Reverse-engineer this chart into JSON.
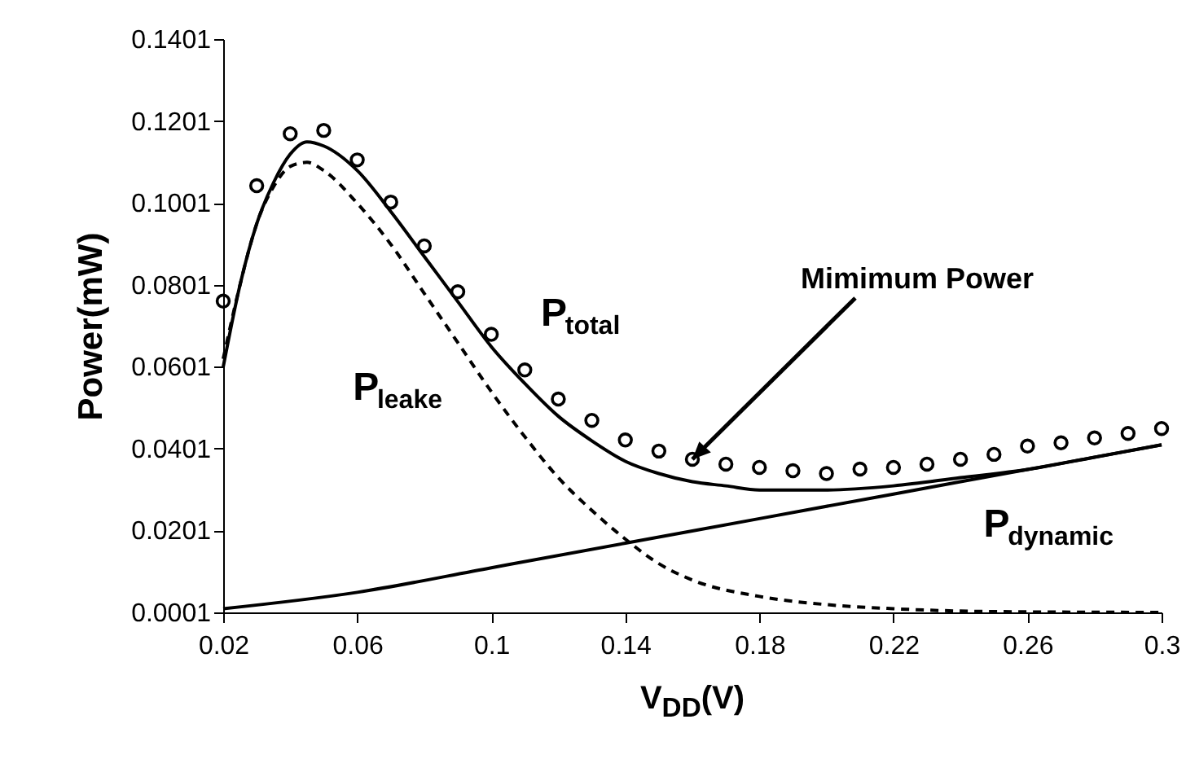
{
  "chart_data": {
    "type": "line",
    "xlabel": "V$_{DD}$(V)",
    "ylabel": "Power(mW)",
    "xlim": [
      0.02,
      0.3
    ],
    "xticks": [
      0.02,
      0.06,
      0.1,
      0.14,
      0.18,
      0.22,
      0.26,
      0.3
    ],
    "ylim": [
      0.0001,
      0.1401
    ],
    "yticks": [
      0.0001,
      0.0201,
      0.0401,
      0.0601,
      0.0801,
      0.1001,
      0.1201,
      0.1401
    ],
    "annotations": [
      {
        "text": "Mimimum Power",
        "x": 0.16,
        "y": 0.0375
      }
    ],
    "series": [
      {
        "name": "P$_{total}$",
        "color": "#000000",
        "line_style": "solid",
        "x": [
          0.02,
          0.025,
          0.03,
          0.035,
          0.04,
          0.045,
          0.05,
          0.06,
          0.07,
          0.08,
          0.09,
          0.1,
          0.11,
          0.12,
          0.13,
          0.14,
          0.15,
          0.16,
          0.17,
          0.18,
          0.2,
          0.22,
          0.24,
          0.26,
          0.28,
          0.3
        ],
        "values": [
          0.06,
          0.08,
          0.095,
          0.105,
          0.112,
          0.115,
          0.114,
          0.108,
          0.098,
          0.087,
          0.076,
          0.065,
          0.056,
          0.048,
          0.042,
          0.037,
          0.034,
          0.032,
          0.031,
          0.03,
          0.03,
          0.031,
          0.033,
          0.035,
          0.038,
          0.041
        ]
      },
      {
        "name": "P$_{leake}$",
        "color": "#000000",
        "line_style": "dashed",
        "x": [
          0.02,
          0.025,
          0.03,
          0.035,
          0.04,
          0.045,
          0.05,
          0.06,
          0.07,
          0.08,
          0.09,
          0.1,
          0.11,
          0.12,
          0.13,
          0.14,
          0.15,
          0.16,
          0.18,
          0.2,
          0.22,
          0.25,
          0.3
        ],
        "values": [
          0.062,
          0.08,
          0.095,
          0.104,
          0.109,
          0.11,
          0.108,
          0.1,
          0.09,
          0.078,
          0.066,
          0.054,
          0.043,
          0.033,
          0.025,
          0.018,
          0.012,
          0.008,
          0.004,
          0.002,
          0.001,
          0.0003,
          0.0001
        ]
      },
      {
        "name": "P$_{dynamic}$",
        "color": "#000000",
        "line_style": "solid",
        "x": [
          0.02,
          0.06,
          0.1,
          0.14,
          0.18,
          0.22,
          0.26,
          0.3
        ],
        "values": [
          0.001,
          0.005,
          0.011,
          0.017,
          0.023,
          0.029,
          0.035,
          0.041
        ]
      },
      {
        "type": "scatter",
        "color": "#000000",
        "marker": "circle",
        "x": [
          0.02,
          0.03,
          0.04,
          0.05,
          0.06,
          0.07,
          0.08,
          0.09,
          0.1,
          0.11,
          0.12,
          0.13,
          0.14,
          0.15,
          0.16,
          0.17,
          0.18,
          0.19,
          0.2,
          0.21,
          0.22,
          0.23,
          0.24,
          0.25,
          0.26,
          0.27,
          0.28,
          0.29,
          0.3
        ],
        "values": [
          0.0761,
          0.1043,
          0.117,
          0.1178,
          0.1106,
          0.1003,
          0.0896,
          0.0784,
          0.068,
          0.0593,
          0.0522,
          0.047,
          0.0422,
          0.0395,
          0.0375,
          0.0363,
          0.0355,
          0.0347,
          0.034,
          0.0351,
          0.0355,
          0.0363,
          0.0375,
          0.0387,
          0.0407,
          0.0415,
          0.0427,
          0.0438,
          0.045
        ]
      }
    ]
  }
}
